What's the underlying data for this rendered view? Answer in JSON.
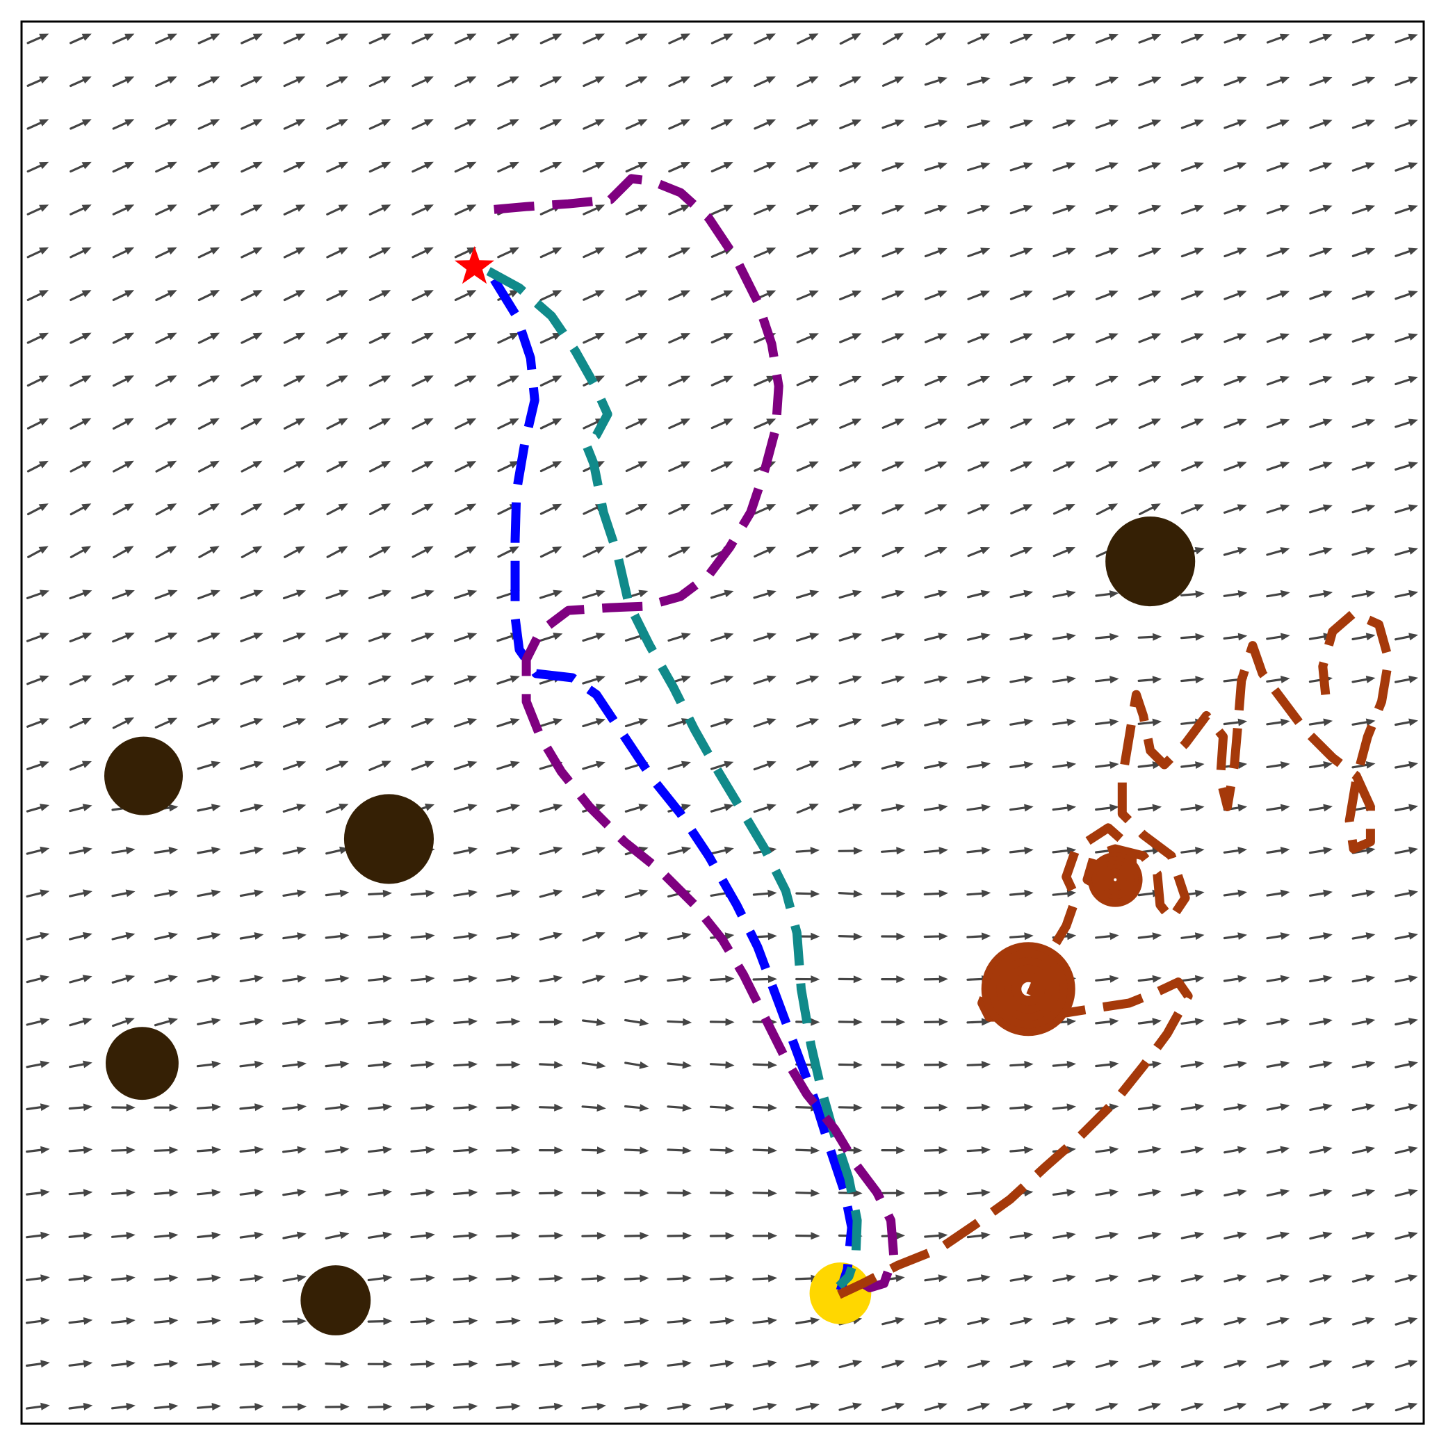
{
  "chart_data": {
    "type": "scatter",
    "title": "",
    "xlabel": "",
    "ylabel": "",
    "xlim": [
      0,
      1
    ],
    "ylim": [
      0,
      1
    ],
    "ticks": "none",
    "grid": false,
    "legend": "none",
    "colors": {
      "arrows": "#444444",
      "obstacles": "#352005",
      "goal": "#ffd700",
      "start": "#ff0000",
      "blue_path": "#0000ff",
      "teal_path": "#108a8a",
      "purple_path": "#7f0080",
      "orange_path": "#a5390a"
    },
    "obstacles": [
      {
        "x": 0.805,
        "y": 0.615,
        "r": 0.032
      },
      {
        "x": 0.087,
        "y": 0.462,
        "r": 0.028
      },
      {
        "x": 0.262,
        "y": 0.417,
        "r": 0.032
      },
      {
        "x": 0.086,
        "y": 0.257,
        "r": 0.026
      },
      {
        "x": 0.224,
        "y": 0.088,
        "r": 0.025
      }
    ],
    "start": {
      "x": 0.323,
      "y": 0.825,
      "marker": "star"
    },
    "goal": {
      "x": 0.584,
      "y": 0.093,
      "r": 0.022
    },
    "series": [
      {
        "color": "blue",
        "points": [
          [
            0.337,
            0.816
          ],
          [
            0.353,
            0.79
          ],
          [
            0.363,
            0.76
          ],
          [
            0.366,
            0.73
          ],
          [
            0.359,
            0.7
          ],
          [
            0.353,
            0.665
          ],
          [
            0.352,
            0.63
          ],
          [
            0.352,
            0.6
          ],
          [
            0.352,
            0.575
          ],
          [
            0.355,
            0.552
          ],
          [
            0.367,
            0.535
          ],
          [
            0.393,
            0.532
          ],
          [
            0.41,
            0.52
          ],
          [
            0.43,
            0.49
          ],
          [
            0.45,
            0.46
          ],
          [
            0.47,
            0.435
          ],
          [
            0.49,
            0.405
          ],
          [
            0.51,
            0.37
          ],
          [
            0.525,
            0.34
          ],
          [
            0.54,
            0.3
          ],
          [
            0.553,
            0.265
          ],
          [
            0.566,
            0.23
          ],
          [
            0.577,
            0.195
          ],
          [
            0.587,
            0.165
          ],
          [
            0.592,
            0.14
          ],
          [
            0.589,
            0.11
          ],
          [
            0.584,
            0.095
          ]
        ]
      },
      {
        "color": "teal",
        "points": [
          [
            0.333,
            0.822
          ],
          [
            0.355,
            0.81
          ],
          [
            0.378,
            0.79
          ],
          [
            0.395,
            0.765
          ],
          [
            0.408,
            0.742
          ],
          [
            0.418,
            0.72
          ],
          [
            0.41,
            0.705
          ],
          [
            0.402,
            0.7
          ],
          [
            0.408,
            0.685
          ],
          [
            0.415,
            0.65
          ],
          [
            0.425,
            0.62
          ],
          [
            0.433,
            0.585
          ],
          [
            0.448,
            0.555
          ],
          [
            0.465,
            0.525
          ],
          [
            0.48,
            0.495
          ],
          [
            0.497,
            0.465
          ],
          [
            0.515,
            0.435
          ],
          [
            0.53,
            0.41
          ],
          [
            0.545,
            0.38
          ],
          [
            0.553,
            0.35
          ],
          [
            0.556,
            0.31
          ],
          [
            0.563,
            0.27
          ],
          [
            0.57,
            0.24
          ],
          [
            0.58,
            0.205
          ],
          [
            0.59,
            0.175
          ],
          [
            0.596,
            0.145
          ],
          [
            0.595,
            0.12
          ],
          [
            0.59,
            0.105
          ],
          [
            0.583,
            0.098
          ]
        ]
      },
      {
        "color": "purple",
        "points": [
          [
            0.337,
            0.866
          ],
          [
            0.36,
            0.868
          ],
          [
            0.39,
            0.87
          ],
          [
            0.42,
            0.873
          ],
          [
            0.435,
            0.888
          ],
          [
            0.45,
            0.886
          ],
          [
            0.47,
            0.878
          ],
          [
            0.49,
            0.86
          ],
          [
            0.51,
            0.83
          ],
          [
            0.525,
            0.8
          ],
          [
            0.535,
            0.77
          ],
          [
            0.54,
            0.74
          ],
          [
            0.538,
            0.71
          ],
          [
            0.53,
            0.68
          ],
          [
            0.52,
            0.65
          ],
          [
            0.505,
            0.625
          ],
          [
            0.49,
            0.605
          ],
          [
            0.47,
            0.59
          ],
          [
            0.445,
            0.583
          ],
          [
            0.42,
            0.582
          ],
          [
            0.39,
            0.58
          ],
          [
            0.37,
            0.565
          ],
          [
            0.36,
            0.545
          ],
          [
            0.36,
            0.515
          ],
          [
            0.37,
            0.49
          ],
          [
            0.385,
            0.465
          ],
          [
            0.405,
            0.44
          ],
          [
            0.43,
            0.415
          ],
          [
            0.455,
            0.395
          ],
          [
            0.48,
            0.37
          ],
          [
            0.5,
            0.345
          ],
          [
            0.515,
            0.32
          ],
          [
            0.53,
            0.29
          ],
          [
            0.545,
            0.26
          ],
          [
            0.56,
            0.235
          ],
          [
            0.58,
            0.21
          ],
          [
            0.595,
            0.185
          ],
          [
            0.61,
            0.165
          ],
          [
            0.62,
            0.145
          ],
          [
            0.622,
            0.12
          ],
          [
            0.615,
            0.1
          ],
          [
            0.605,
            0.097
          ],
          [
            0.6,
            0.1
          ]
        ]
      },
      {
        "color": "orange",
        "points": [
          [
            0.583,
            0.092
          ],
          [
            0.6,
            0.1
          ],
          [
            0.625,
            0.113
          ],
          [
            0.655,
            0.125
          ],
          [
            0.68,
            0.142
          ],
          [
            0.705,
            0.16
          ],
          [
            0.73,
            0.183
          ],
          [
            0.755,
            0.205
          ],
          [
            0.78,
            0.23
          ],
          [
            0.8,
            0.255
          ],
          [
            0.817,
            0.278
          ],
          [
            0.832,
            0.305
          ],
          [
            0.825,
            0.315
          ],
          [
            0.81,
            0.308
          ],
          [
            0.79,
            0.3
          ],
          [
            0.77,
            0.297
          ],
          [
            0.745,
            0.293
          ],
          [
            0.72,
            0.298
          ],
          [
            0.7,
            0.305
          ],
          [
            0.69,
            0.313
          ],
          [
            0.685,
            0.3
          ],
          [
            0.69,
            0.29
          ],
          [
            0.71,
            0.29
          ],
          [
            0.725,
            0.3
          ],
          [
            0.73,
            0.315
          ],
          [
            0.725,
            0.322
          ],
          [
            0.71,
            0.325
          ],
          [
            0.695,
            0.318
          ],
          [
            0.69,
            0.305
          ],
          [
            0.7,
            0.292
          ],
          [
            0.715,
            0.295
          ],
          [
            0.73,
            0.33
          ],
          [
            0.745,
            0.355
          ],
          [
            0.752,
            0.375
          ],
          [
            0.745,
            0.39
          ],
          [
            0.752,
            0.41
          ],
          [
            0.775,
            0.425
          ],
          [
            0.792,
            0.41
          ],
          [
            0.792,
            0.39
          ],
          [
            0.775,
            0.38
          ],
          [
            0.76,
            0.388
          ],
          [
            0.765,
            0.405
          ],
          [
            0.78,
            0.41
          ],
          [
            0.8,
            0.405
          ],
          [
            0.81,
            0.392
          ],
          [
            0.812,
            0.37
          ],
          [
            0.82,
            0.36
          ],
          [
            0.83,
            0.375
          ],
          [
            0.82,
            0.405
          ],
          [
            0.8,
            0.42
          ],
          [
            0.785,
            0.435
          ],
          [
            0.785,
            0.46
          ],
          [
            0.79,
            0.49
          ],
          [
            0.795,
            0.52
          ],
          [
            0.8,
            0.505
          ],
          [
            0.805,
            0.48
          ],
          [
            0.815,
            0.47
          ],
          [
            0.83,
            0.485
          ],
          [
            0.845,
            0.505
          ],
          [
            0.857,
            0.49
          ],
          [
            0.855,
            0.46
          ],
          [
            0.86,
            0.44
          ],
          [
            0.865,
            0.47
          ],
          [
            0.868,
            0.505
          ],
          [
            0.87,
            0.53
          ],
          [
            0.878,
            0.555
          ],
          [
            0.885,
            0.535
          ],
          [
            0.9,
            0.515
          ],
          [
            0.915,
            0.495
          ],
          [
            0.935,
            0.475
          ],
          [
            0.952,
            0.462
          ],
          [
            0.962,
            0.44
          ],
          [
            0.962,
            0.415
          ],
          [
            0.95,
            0.41
          ],
          [
            0.947,
            0.43
          ],
          [
            0.952,
            0.46
          ],
          [
            0.96,
            0.49
          ],
          [
            0.97,
            0.515
          ],
          [
            0.975,
            0.545
          ],
          [
            0.968,
            0.57
          ],
          [
            0.95,
            0.578
          ],
          [
            0.935,
            0.565
          ],
          [
            0.928,
            0.54
          ],
          [
            0.93,
            0.52
          ]
        ]
      }
    ]
  }
}
